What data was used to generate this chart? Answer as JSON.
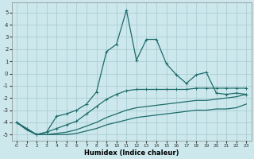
{
  "xlabel": "Humidex (Indice chaleur)",
  "bg_color": "#cce8ec",
  "grid_color": "#aacdd4",
  "line_color": "#1e6b6b",
  "xlim": [
    -0.5,
    23.5
  ],
  "ylim": [
    -5.5,
    5.8
  ],
  "yticks": [
    -5,
    -4,
    -3,
    -2,
    -1,
    0,
    1,
    2,
    3,
    4,
    5
  ],
  "xticks": [
    0,
    1,
    2,
    3,
    4,
    5,
    6,
    7,
    8,
    9,
    10,
    11,
    12,
    13,
    14,
    15,
    16,
    17,
    18,
    19,
    20,
    21,
    22,
    23
  ],
  "series": [
    {
      "x": [
        0,
        1,
        2,
        3,
        4,
        5,
        6,
        7,
        8,
        9,
        10,
        11,
        12,
        13,
        14,
        15,
        16,
        17,
        18,
        19,
        20,
        21,
        22,
        23
      ],
      "y": [
        -4.0,
        -4.6,
        -5.0,
        -5.0,
        -5.0,
        -5.0,
        -4.9,
        -4.7,
        -4.5,
        -4.2,
        -4.0,
        -3.8,
        -3.6,
        -3.5,
        -3.4,
        -3.3,
        -3.2,
        -3.1,
        -3.0,
        -3.0,
        -2.9,
        -2.9,
        -2.8,
        -2.5
      ],
      "marker": null,
      "lw": 0.9
    },
    {
      "x": [
        0,
        1,
        2,
        3,
        4,
        5,
        6,
        7,
        8,
        9,
        10,
        11,
        12,
        13,
        14,
        15,
        16,
        17,
        18,
        19,
        20,
        21,
        22,
        23
      ],
      "y": [
        -4.0,
        -4.6,
        -5.0,
        -5.0,
        -4.9,
        -4.8,
        -4.6,
        -4.3,
        -4.0,
        -3.6,
        -3.3,
        -3.0,
        -2.8,
        -2.7,
        -2.6,
        -2.5,
        -2.4,
        -2.3,
        -2.2,
        -2.2,
        -2.1,
        -2.0,
        -1.9,
        -1.7
      ],
      "marker": null,
      "lw": 0.9
    },
    {
      "x": [
        0,
        1,
        2,
        3,
        4,
        5,
        6,
        7,
        8,
        9,
        10,
        11,
        12,
        13,
        14,
        15,
        16,
        17,
        18,
        19,
        20,
        21,
        22,
        23
      ],
      "y": [
        -4.0,
        -4.5,
        -5.0,
        -4.8,
        -4.5,
        -4.2,
        -3.9,
        -3.3,
        -2.7,
        -2.1,
        -1.7,
        -1.4,
        -1.3,
        -1.3,
        -1.3,
        -1.3,
        -1.3,
        -1.3,
        -1.2,
        -1.2,
        -1.2,
        -1.2,
        -1.2,
        -1.2
      ],
      "marker": "+",
      "lw": 0.9
    },
    {
      "x": [
        0,
        1,
        2,
        3,
        4,
        5,
        6,
        7,
        8,
        9,
        10,
        11,
        12,
        13,
        14,
        15,
        16,
        17,
        18,
        19,
        20,
        21,
        22,
        23
      ],
      "y": [
        -4.0,
        -4.5,
        -5.0,
        -4.8,
        -3.5,
        -3.3,
        -3.0,
        -2.5,
        -1.5,
        1.8,
        2.4,
        5.2,
        1.1,
        2.8,
        2.8,
        0.8,
        -0.1,
        -0.8,
        -0.1,
        0.1,
        -1.6,
        -1.7,
        -1.6,
        -1.7
      ],
      "marker": "+",
      "lw": 0.9
    }
  ]
}
